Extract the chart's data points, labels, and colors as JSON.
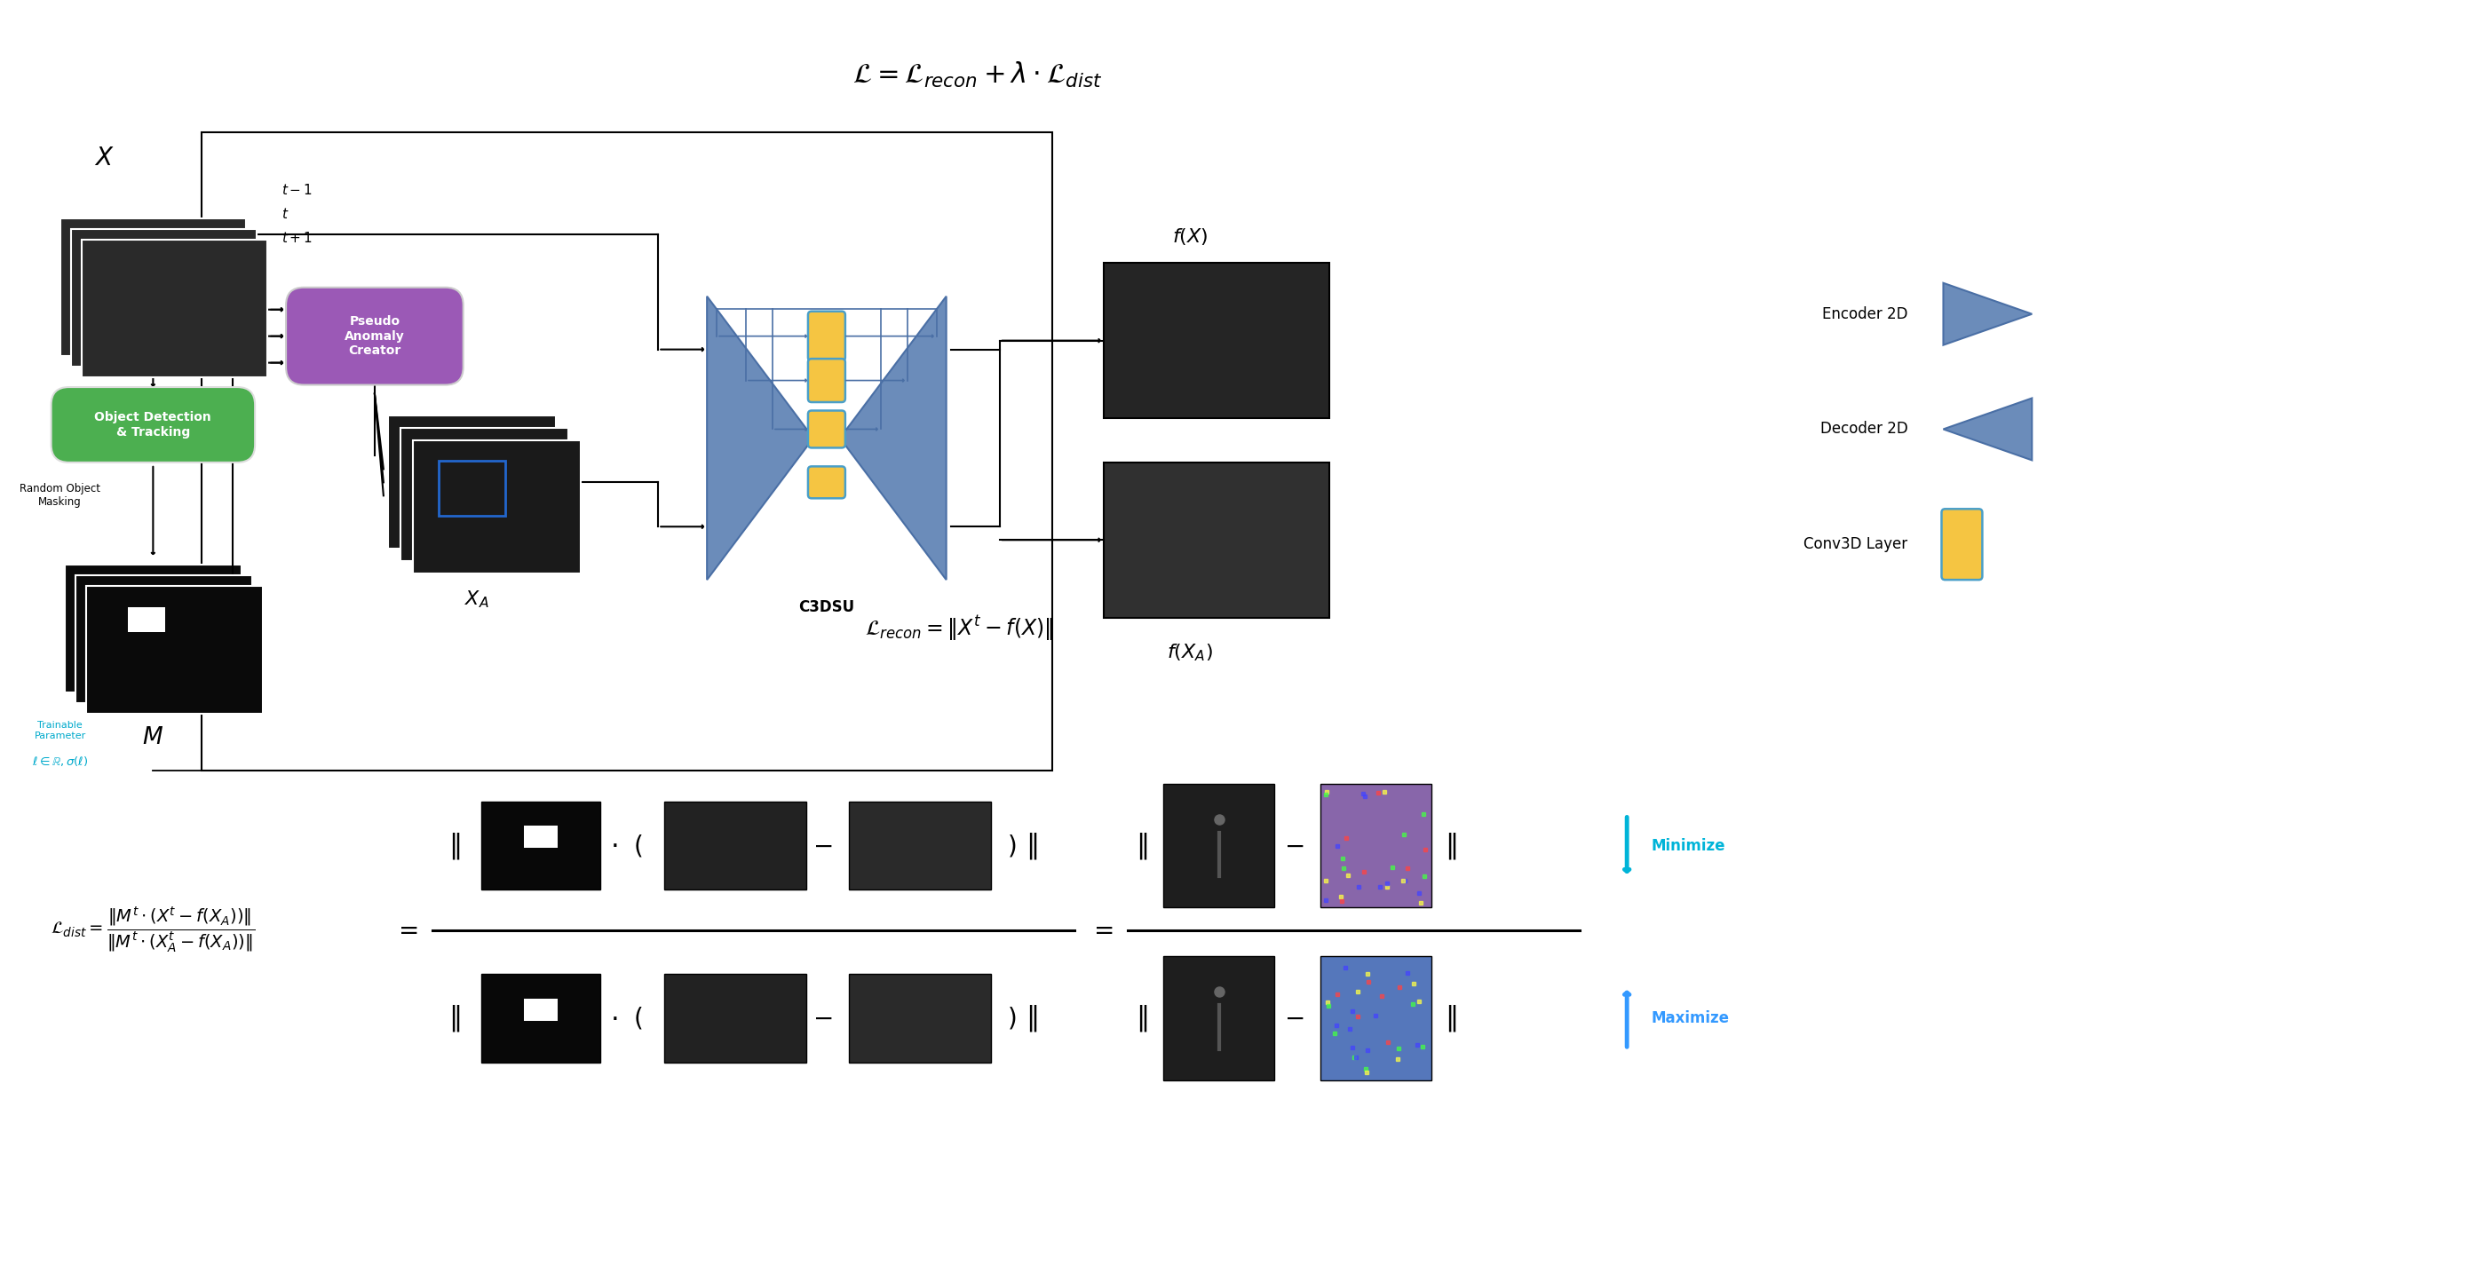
{
  "fig_width": 28.03,
  "fig_height": 14.43,
  "bg_color": "#ffffff",
  "formula_top": "$\\mathcal{L} = \\mathcal{L}_{recon} + \\lambda \\cdot \\mathcal{L}_{dist}$",
  "formula_mid": "$\\mathcal{L}_{recon} = \\|X^t - f(X)\\|$",
  "formula_dist_left": "$\\mathcal{L}_{dist} = \\dfrac{\\|M^t \\cdot (X^t - f(X_A))\\|}{\\|M^t \\cdot (X_A^t - f(X_A))\\|}$",
  "green_box_text": "Object Detection\n& Tracking",
  "purple_box_text": "Pseudo\nAnomaly\nCreator",
  "c3dsu_label": "C3DSU",
  "encoder_label": "Encoder 2D",
  "decoder_label": "Decoder 2D",
  "conv3d_label": "Conv3D Layer",
  "minimize_label": "Minimize",
  "maximize_label": "Maximize",
  "random_masking_label": "Random Object\nMasking",
  "trainable_label": "Trainable\nParameter",
  "ell_formula": "$\\ell \\in \\mathbb{R}, \\sigma(\\ell)$",
  "blue_color": "#6b8cba",
  "blue_edge": "#4a6fa5",
  "yellow_color": "#f5c542",
  "yellow_edge": "#4a9fc8",
  "green_color_top": "#7dd46a",
  "green_color_bot": "#3ba82b",
  "purple_color": "#9b59b6",
  "cyan_minimize": "#00b4d8",
  "cyan_maximize": "#00b4d8"
}
